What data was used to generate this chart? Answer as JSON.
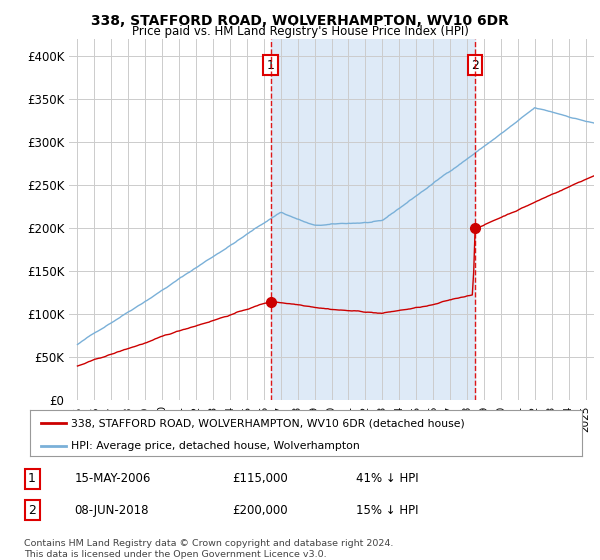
{
  "title": "338, STAFFORD ROAD, WOLVERHAMPTON, WV10 6DR",
  "subtitle": "Price paid vs. HM Land Registry's House Price Index (HPI)",
  "ylim": [
    0,
    420000
  ],
  "yticks": [
    0,
    50000,
    100000,
    150000,
    200000,
    250000,
    300000,
    350000,
    400000
  ],
  "ytick_labels": [
    "£0",
    "£50K",
    "£100K",
    "£150K",
    "£200K",
    "£250K",
    "£300K",
    "£350K",
    "£400K"
  ],
  "sale1_x": 11.4,
  "sale1_price": 115000,
  "sale2_x": 23.45,
  "sale2_price": 200000,
  "sale1_date_str": "15-MAY-2006",
  "sale1_price_str": "£115,000",
  "sale1_pct_str": "41% ↓ HPI",
  "sale2_date_str": "08-JUN-2018",
  "sale2_price_str": "£200,000",
  "sale2_pct_str": "15% ↓ HPI",
  "hpi_color": "#7ab0d8",
  "price_color": "#cc0000",
  "vline_color": "#dd0000",
  "shade_color": "#deeaf7",
  "background_color": "#ffffff",
  "grid_color": "#cccccc",
  "legend_label_price": "338, STAFFORD ROAD, WOLVERHAMPTON, WV10 6DR (detached house)",
  "legend_label_hpi": "HPI: Average price, detached house, Wolverhampton",
  "footer": "Contains HM Land Registry data © Crown copyright and database right 2024.\nThis data is licensed under the Open Government Licence v3.0.",
  "x_start_year": 1995,
  "x_end_year": 2025
}
